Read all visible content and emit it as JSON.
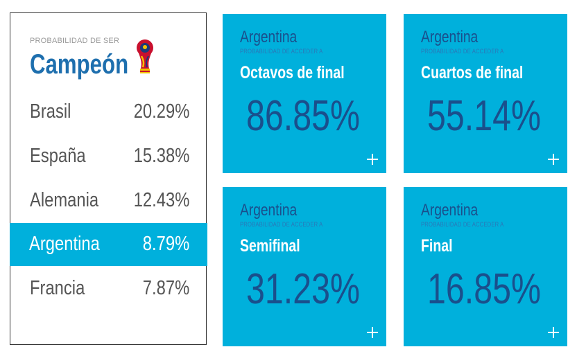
{
  "champion_card": {
    "subtitle": "PROBABILIDAD DE SER",
    "title": "Campeón",
    "trophy_icon": "world-cup-trophy-icon",
    "rows": [
      {
        "team": "Brasil",
        "pct": "20.29%",
        "highlighted": false
      },
      {
        "team": "España",
        "pct": "15.38%",
        "highlighted": false
      },
      {
        "team": "Alemania",
        "pct": "12.43%",
        "highlighted": false
      },
      {
        "team": "Argentina",
        "pct": "8.79%",
        "highlighted": true
      },
      {
        "team": "Francia",
        "pct": "7.87%",
        "highlighted": false
      }
    ]
  },
  "tiles": [
    {
      "team": "Argentina",
      "subtitle": "PROBABILIDAD DE ACCEDER A",
      "stage": "Octavos de final",
      "value": "86.85%",
      "more_icon": "plus-icon"
    },
    {
      "team": "Argentina",
      "subtitle": "PROBABILIDAD DE ACCEDER A",
      "stage": "Cuartos de final",
      "value": "55.14%",
      "more_icon": "plus-icon"
    },
    {
      "team": "Argentina",
      "subtitle": "PROBABILIDAD DE ACCEDER A",
      "stage": "Semifinal",
      "value": "31.23%",
      "more_icon": "plus-icon"
    },
    {
      "team": "Argentina",
      "subtitle": "PROBABILIDAD DE ACCEDER A",
      "stage": "Final",
      "value": "16.85%",
      "more_icon": "plus-icon"
    }
  ],
  "colors": {
    "tile_background": "#00b0dc",
    "title_blue": "#1e6fae",
    "value_blue": "#1a4f8c",
    "text_gray": "#555555"
  }
}
